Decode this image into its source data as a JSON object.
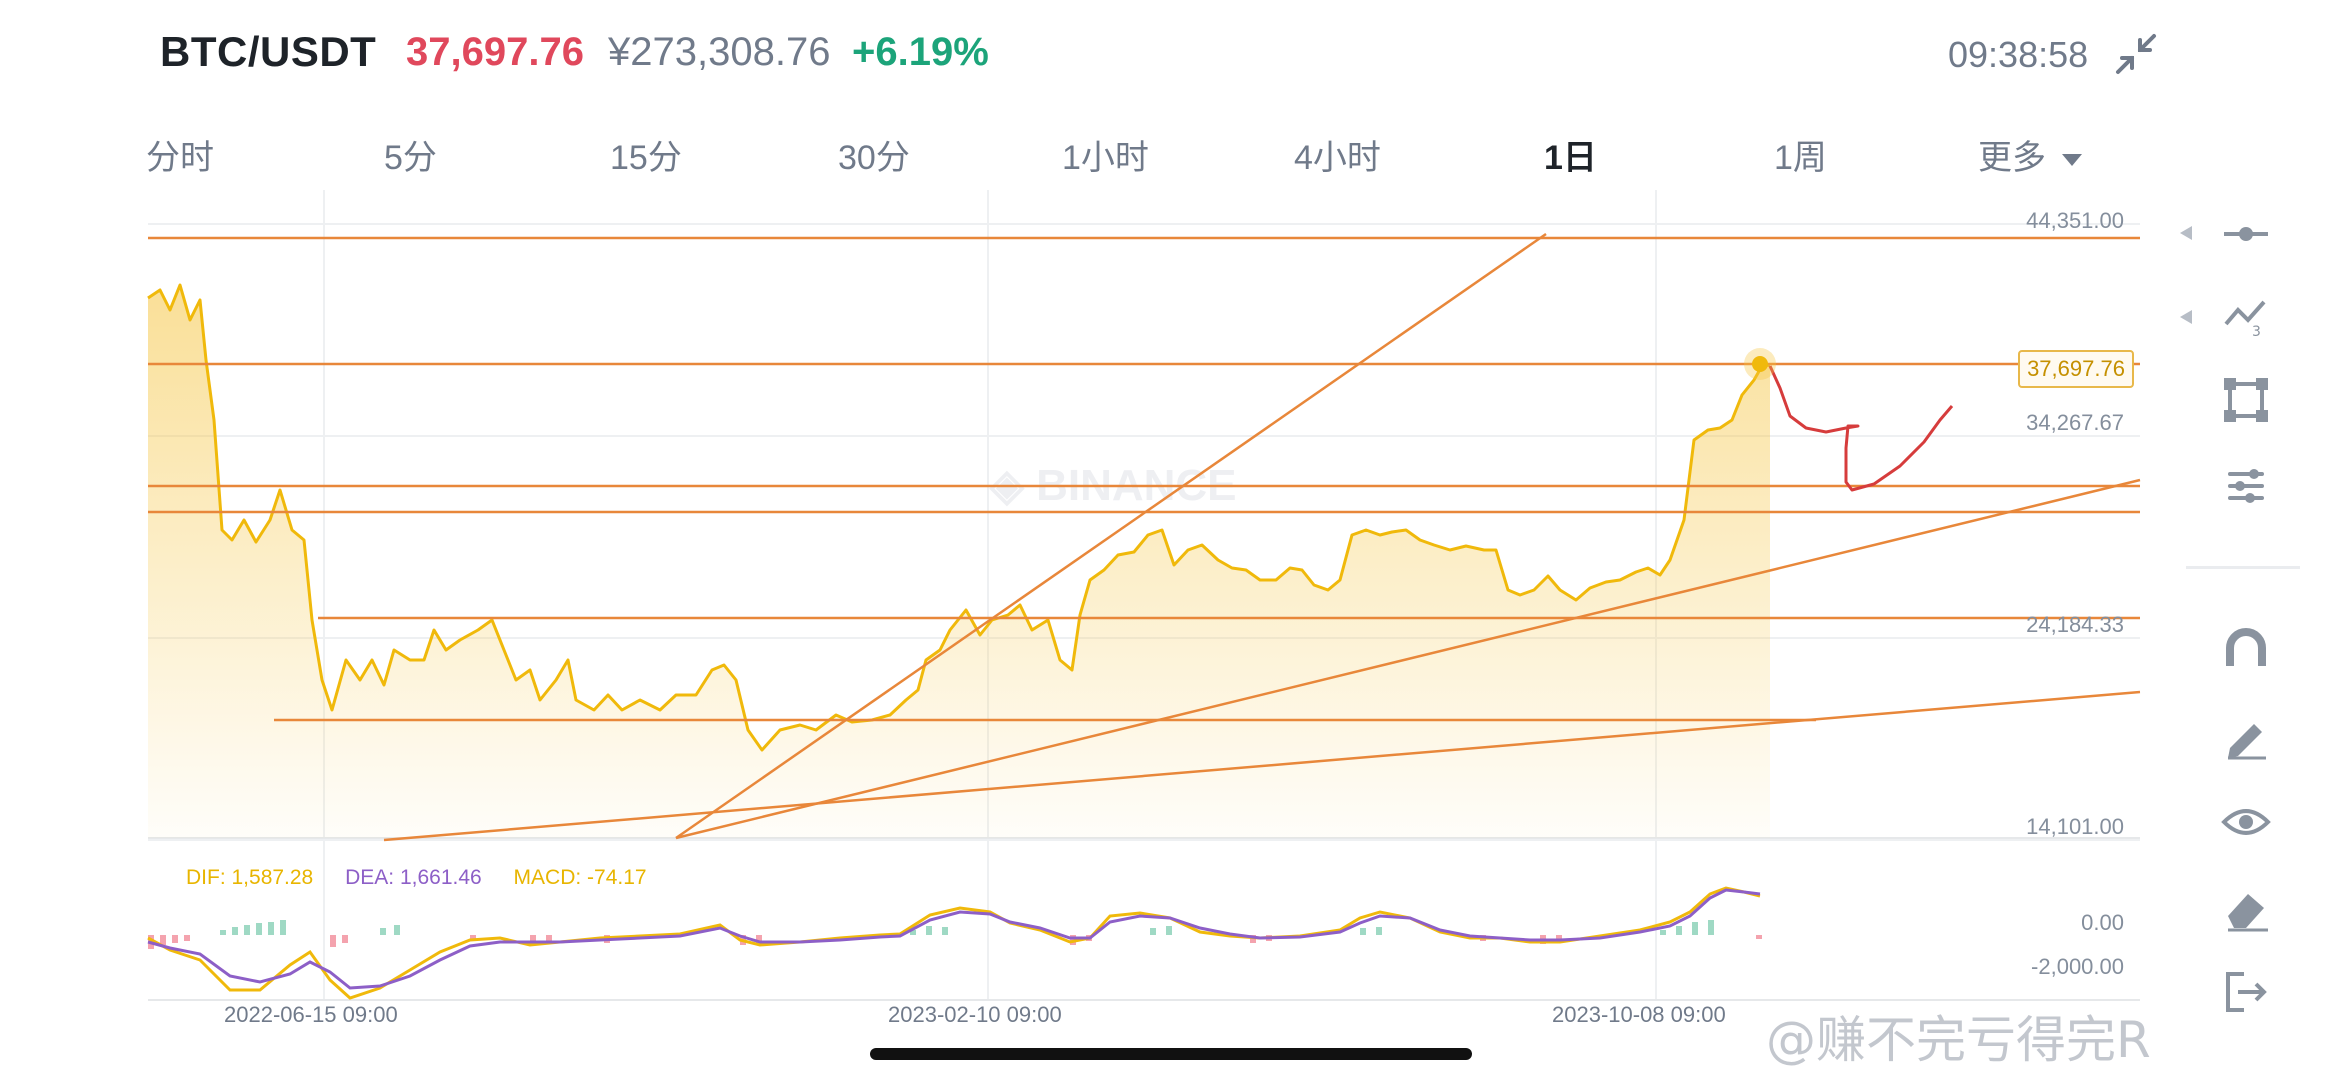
{
  "header": {
    "pair": "BTC/USDT",
    "price": "37,697.76",
    "price_cny": "¥273,308.76",
    "change_pct": "+6.19%",
    "clock": "09:38:58",
    "collapse_icon": "collapse-arrows-icon"
  },
  "tabs": [
    {
      "label": "分时",
      "active": false
    },
    {
      "label": "5分",
      "active": false
    },
    {
      "label": "15分",
      "active": false
    },
    {
      "label": "30分",
      "active": false
    },
    {
      "label": "1小时",
      "active": false
    },
    {
      "label": "4小时",
      "active": false
    },
    {
      "label": "1日",
      "active": true
    },
    {
      "label": "1周",
      "active": false
    },
    {
      "label": "更多",
      "active": false
    }
  ],
  "chart": {
    "watermark": "BINANCE",
    "y_labels": [
      "44,351.00",
      "34,267.67",
      "24,184.33",
      "14,101.00"
    ],
    "last_price_tag": "37,697.76",
    "date_labels": [
      "2022-06-15 09:00",
      "2023-02-10 09:00",
      "2023-10-08 09:00"
    ]
  },
  "macd": {
    "dif": "DIF: 1,587.28",
    "dea": "DEA: 1,661.46",
    "macd": "MACD: -74.17",
    "y_labels": [
      "0.00",
      "-2,000.00"
    ]
  },
  "colors": {
    "price_up": "#1ca47a",
    "price_down": "#e0485c",
    "line": "#f0b90b",
    "drawings": "#e8873a",
    "dea": "#8d5fc7"
  },
  "sidebar": {
    "icons": [
      "horizontal-line-tool-icon",
      "trend-line-tool-icon",
      "rectangle-tool-icon",
      "indicator-settings-icon",
      "magnet-icon",
      "pencil-icon",
      "eye-icon",
      "eraser-icon",
      "exit-icon"
    ]
  },
  "watermark_text": "@赚不完亏得完R"
}
